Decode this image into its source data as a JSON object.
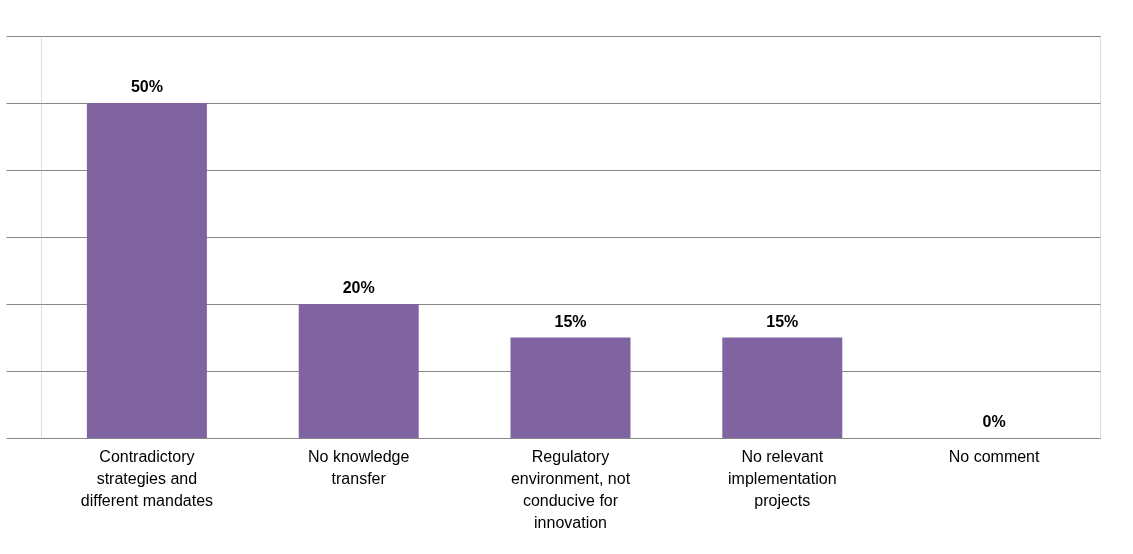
{
  "chart_data": {
    "type": "bar",
    "categories": [
      "Contradictory strategies and different mandates",
      "No knowledge transfer",
      "Regulatory environment, not conducive for innovation",
      "No relevant implementation projects",
      "No comment"
    ],
    "values": [
      50,
      20,
      15,
      15,
      0
    ],
    "value_labels": [
      "50%",
      "20%",
      "15%",
      "15%",
      "0%"
    ],
    "color": "#8064a2",
    "ylim": [
      0,
      60
    ],
    "yticks": [
      {
        "value": 0,
        "label": null
      },
      {
        "value": 10,
        "label": null
      },
      {
        "value": 20,
        "label": null
      },
      {
        "value": 30,
        "label": null
      },
      {
        "value": 40,
        "label": null
      },
      {
        "value": 50,
        "label": null
      },
      {
        "value": 60,
        "label": null
      }
    ],
    "grid": "y",
    "tick_labels": "x"
  }
}
